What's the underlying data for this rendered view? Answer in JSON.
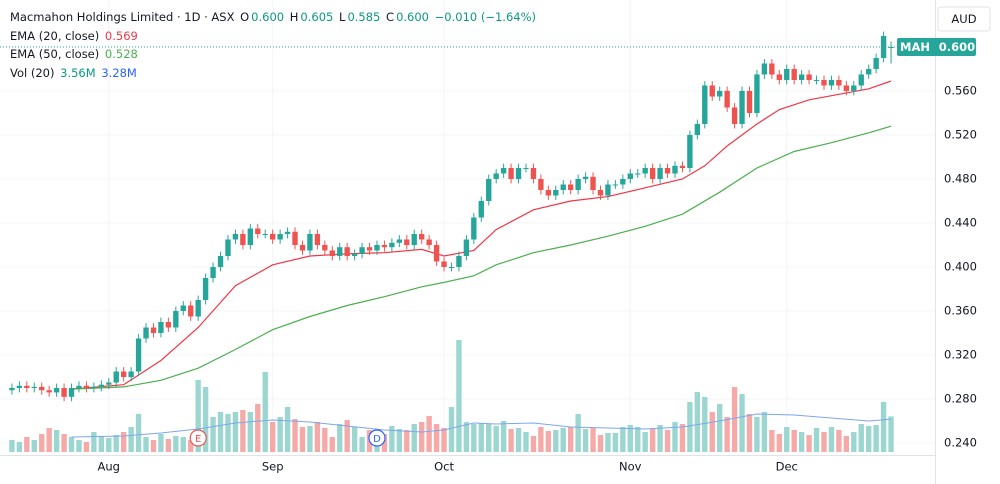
{
  "header": {
    "symbol": "Macmahon Holdings Limited · 1D · ASX",
    "ohlc_labels": [
      "O",
      "H",
      "L",
      "C"
    ],
    "ohlc_values": [
      "0.600",
      "0.605",
      "0.585",
      "0.600"
    ],
    "change": "−0.010 (−1.64%)",
    "currency": "AUD",
    "ticker": "MAH"
  },
  "chart_data": {
    "type": "candlestick",
    "color_up": "#26a69a",
    "color_down": "#ef5350",
    "open": [
      0.288,
      0.29,
      0.292,
      0.29,
      0.291,
      0.288,
      0.286,
      0.29,
      0.282,
      0.29,
      0.292,
      0.29,
      0.291,
      0.293,
      0.295,
      0.305,
      0.3,
      0.305,
      0.335,
      0.345,
      0.34,
      0.35,
      0.345,
      0.36,
      0.365,
      0.355,
      0.37,
      0.39,
      0.4,
      0.41,
      0.425,
      0.43,
      0.42,
      0.435,
      0.43,
      0.43,
      0.425,
      0.43,
      0.432,
      0.42,
      0.415,
      0.43,
      0.42,
      0.415,
      0.41,
      0.418,
      0.41,
      0.412,
      0.418,
      0.415,
      0.42,
      0.418,
      0.422,
      0.425,
      0.42,
      0.43,
      0.425,
      0.42,
      0.405,
      0.4,
      0.4,
      0.41,
      0.425,
      0.445,
      0.46,
      0.48,
      0.485,
      0.49,
      0.48,
      0.49,
      0.49,
      0.48,
      0.47,
      0.465,
      0.47,
      0.475,
      0.47,
      0.48,
      0.482,
      0.47,
      0.465,
      0.475,
      0.475,
      0.48,
      0.485,
      0.485,
      0.49,
      0.48,
      0.49,
      0.485,
      0.492,
      0.49,
      0.52,
      0.53,
      0.565,
      0.555,
      0.56,
      0.545,
      0.53,
      0.56,
      0.54,
      0.575,
      0.585,
      0.575,
      0.57,
      0.58,
      0.57,
      0.575,
      0.57,
      0.57,
      0.565,
      0.57,
      0.565,
      0.56,
      0.565,
      0.575,
      0.58,
      0.59,
      0.6
    ],
    "high": [
      0.294,
      0.296,
      0.296,
      0.295,
      0.295,
      0.292,
      0.294,
      0.294,
      0.294,
      0.296,
      0.296,
      0.295,
      0.297,
      0.299,
      0.309,
      0.309,
      0.309,
      0.339,
      0.349,
      0.349,
      0.354,
      0.354,
      0.364,
      0.369,
      0.369,
      0.374,
      0.394,
      0.404,
      0.414,
      0.429,
      0.434,
      0.434,
      0.439,
      0.439,
      0.434,
      0.434,
      0.434,
      0.436,
      0.436,
      0.424,
      0.434,
      0.434,
      0.424,
      0.419,
      0.422,
      0.422,
      0.416,
      0.422,
      0.422,
      0.424,
      0.424,
      0.426,
      0.429,
      0.429,
      0.434,
      0.434,
      0.429,
      0.424,
      0.409,
      0.404,
      0.414,
      0.429,
      0.449,
      0.464,
      0.484,
      0.489,
      0.494,
      0.494,
      0.494,
      0.494,
      0.494,
      0.484,
      0.474,
      0.474,
      0.479,
      0.479,
      0.484,
      0.486,
      0.486,
      0.474,
      0.479,
      0.479,
      0.484,
      0.489,
      0.489,
      0.494,
      0.494,
      0.494,
      0.494,
      0.496,
      0.496,
      0.524,
      0.534,
      0.569,
      0.569,
      0.564,
      0.564,
      0.549,
      0.564,
      0.564,
      0.579,
      0.589,
      0.589,
      0.579,
      0.584,
      0.584,
      0.579,
      0.579,
      0.574,
      0.574,
      0.574,
      0.574,
      0.569,
      0.569,
      0.579,
      0.584,
      0.594,
      0.614,
      0.605
    ],
    "low": [
      0.284,
      0.286,
      0.286,
      0.286,
      0.284,
      0.282,
      0.282,
      0.278,
      0.278,
      0.286,
      0.286,
      0.286,
      0.287,
      0.289,
      0.291,
      0.296,
      0.296,
      0.301,
      0.331,
      0.336,
      0.336,
      0.341,
      0.341,
      0.356,
      0.351,
      0.351,
      0.366,
      0.386,
      0.396,
      0.406,
      0.421,
      0.416,
      0.416,
      0.426,
      0.426,
      0.421,
      0.421,
      0.426,
      0.416,
      0.411,
      0.411,
      0.416,
      0.411,
      0.406,
      0.406,
      0.406,
      0.406,
      0.408,
      0.411,
      0.411,
      0.414,
      0.414,
      0.418,
      0.416,
      0.416,
      0.421,
      0.416,
      0.401,
      0.396,
      0.396,
      0.396,
      0.406,
      0.421,
      0.441,
      0.456,
      0.476,
      0.481,
      0.476,
      0.476,
      0.486,
      0.476,
      0.466,
      0.461,
      0.461,
      0.466,
      0.466,
      0.466,
      0.476,
      0.466,
      0.461,
      0.461,
      0.471,
      0.471,
      0.476,
      0.481,
      0.481,
      0.476,
      0.476,
      0.481,
      0.481,
      0.486,
      0.486,
      0.516,
      0.526,
      0.551,
      0.551,
      0.541,
      0.526,
      0.526,
      0.536,
      0.536,
      0.571,
      0.571,
      0.566,
      0.566,
      0.566,
      0.566,
      0.566,
      0.566,
      0.561,
      0.561,
      0.561,
      0.556,
      0.556,
      0.561,
      0.571,
      0.576,
      0.586,
      0.585
    ],
    "close": [
      0.29,
      0.292,
      0.29,
      0.291,
      0.288,
      0.286,
      0.29,
      0.282,
      0.29,
      0.292,
      0.29,
      0.291,
      0.293,
      0.295,
      0.305,
      0.3,
      0.305,
      0.335,
      0.345,
      0.34,
      0.35,
      0.345,
      0.36,
      0.365,
      0.355,
      0.37,
      0.39,
      0.4,
      0.41,
      0.425,
      0.43,
      0.42,
      0.435,
      0.43,
      0.43,
      0.425,
      0.43,
      0.432,
      0.42,
      0.415,
      0.43,
      0.42,
      0.415,
      0.41,
      0.418,
      0.41,
      0.412,
      0.418,
      0.415,
      0.42,
      0.418,
      0.422,
      0.425,
      0.42,
      0.43,
      0.425,
      0.42,
      0.405,
      0.4,
      0.4,
      0.41,
      0.425,
      0.445,
      0.46,
      0.48,
      0.485,
      0.49,
      0.48,
      0.49,
      0.49,
      0.48,
      0.47,
      0.465,
      0.47,
      0.475,
      0.47,
      0.48,
      0.482,
      0.47,
      0.465,
      0.475,
      0.475,
      0.48,
      0.485,
      0.485,
      0.49,
      0.48,
      0.49,
      0.485,
      0.492,
      0.49,
      0.52,
      0.53,
      0.565,
      0.555,
      0.56,
      0.545,
      0.53,
      0.56,
      0.54,
      0.575,
      0.585,
      0.575,
      0.57,
      0.58,
      0.57,
      0.575,
      0.57,
      0.57,
      0.565,
      0.57,
      0.565,
      0.56,
      0.565,
      0.575,
      0.58,
      0.59,
      0.61,
      0.6
    ],
    "volume": {
      "name": "Vol (20)",
      "value_label": "3.56M",
      "color_up": "#9cd6d1",
      "color_down": "#f6aaa8",
      "values": [
        1.2,
        1.0,
        1.5,
        1.2,
        1.8,
        2.4,
        2.2,
        1.8,
        1.5,
        1.2,
        1.0,
        2.0,
        1.6,
        1.4,
        1.7,
        2.0,
        2.5,
        3.8,
        1.5,
        1.2,
        1.8,
        1.3,
        1.6,
        1.5,
        1.2,
        7.2,
        6.5,
        3.5,
        4.0,
        3.8,
        4.0,
        4.2,
        4.0,
        4.8,
        8.0,
        3.0,
        3.5,
        4.5,
        3.3,
        2.5,
        2.6,
        3.0,
        2.4,
        1.5,
        2.8,
        3.2,
        2.5,
        1.5,
        2.2,
        1.4,
        1.8,
        2.6,
        2.3,
        2.2,
        2.8,
        3.0,
        3.6,
        2.8,
        2.4,
        4.5,
        11.2,
        3.0,
        2.8,
        2.9,
        2.8,
        2.6,
        3.1,
        2.3,
        2.4,
        2.0,
        1.6,
        2.5,
        2.1,
        2.2,
        2.4,
        2.5,
        3.8,
        2.3,
        2.4,
        1.7,
        1.9,
        1.9,
        2.5,
        2.7,
        2.5,
        2.0,
        2.3,
        2.7,
        2.2,
        3.0,
        2.8,
        5.0,
        6.0,
        5.5,
        4.0,
        4.8,
        3.5,
        6.5,
        5.8,
        3.8,
        3.5,
        4.0,
        2.2,
        1.8,
        2.5,
        2.2,
        2.0,
        1.7,
        2.4,
        2.0,
        2.5,
        2.2,
        1.6,
        2.0,
        2.8,
        2.6,
        2.7,
        5.0,
        3.56
      ],
      "ylim": [
        0,
        45
      ],
      "ma": {
        "color": "#7ea6f0",
        "value_label": "3.28M",
        "x": [
          8,
          15,
          20,
          25,
          30,
          35,
          40,
          45,
          50,
          55,
          58,
          62,
          65,
          70,
          75,
          80,
          85,
          90,
          95,
          100,
          105,
          110,
          115,
          118
        ],
        "values": [
          1.5,
          1.6,
          1.9,
          2.3,
          2.9,
          3.2,
          3.0,
          2.6,
          2.2,
          2.0,
          2.2,
          2.9,
          2.8,
          2.9,
          2.5,
          2.4,
          2.3,
          2.5,
          3.1,
          3.8,
          3.7,
          3.4,
          3.1,
          3.28
        ]
      }
    },
    "series": [
      {
        "name": "EMA (20, close)",
        "color": "#f23645",
        "value_label": "0.569",
        "x": [
          8,
          15,
          20,
          25,
          30,
          35,
          40,
          45,
          50,
          55,
          58,
          62,
          65,
          70,
          75,
          80,
          85,
          90,
          93,
          96,
          100,
          103,
          107,
          111,
          115,
          118
        ],
        "values": [
          0.289,
          0.293,
          0.315,
          0.345,
          0.383,
          0.402,
          0.41,
          0.412,
          0.413,
          0.416,
          0.41,
          0.415,
          0.434,
          0.452,
          0.46,
          0.464,
          0.472,
          0.48,
          0.492,
          0.51,
          0.53,
          0.543,
          0.552,
          0.557,
          0.562,
          0.569
        ]
      },
      {
        "name": "EMA (50, close)",
        "color": "#4caf50",
        "value_label": "0.528",
        "x": [
          8,
          15,
          20,
          25,
          30,
          35,
          40,
          45,
          50,
          55,
          58,
          62,
          65,
          70,
          75,
          80,
          85,
          90,
          95,
          100,
          105,
          110,
          115,
          118
        ],
        "values": [
          0.289,
          0.291,
          0.297,
          0.308,
          0.325,
          0.343,
          0.355,
          0.365,
          0.373,
          0.382,
          0.386,
          0.392,
          0.402,
          0.413,
          0.42,
          0.428,
          0.437,
          0.448,
          0.468,
          0.49,
          0.505,
          0.513,
          0.522,
          0.528
        ]
      }
    ],
    "last_price": {
      "value": 0.6,
      "label": "0.600"
    },
    "events": [
      {
        "x": 25,
        "label": "E",
        "color": "#ef5350"
      },
      {
        "x": 49,
        "label": "D",
        "color": "#2962ff"
      }
    ],
    "xlim": [
      -1.6,
      123.9
    ],
    "ylim": [
      0.2291,
      0.6427
    ],
    "xticks": [
      {
        "value": 13,
        "label": "Aug"
      },
      {
        "value": 35,
        "label": "Sep"
      },
      {
        "value": 58,
        "label": "Oct"
      },
      {
        "value": 83,
        "label": "Nov"
      },
      {
        "value": 104,
        "label": "Dec"
      }
    ],
    "yticks": [
      {
        "value": 0.24,
        "label": "0.240"
      },
      {
        "value": 0.28,
        "label": "0.280"
      },
      {
        "value": 0.32,
        "label": "0.320"
      },
      {
        "value": 0.36,
        "label": "0.360"
      },
      {
        "value": 0.4,
        "label": "0.400"
      },
      {
        "value": 0.44,
        "label": "0.440"
      },
      {
        "value": 0.48,
        "label": "0.480"
      },
      {
        "value": 0.52,
        "label": "0.520"
      },
      {
        "value": 0.56,
        "label": "0.560"
      }
    ],
    "grid": true
  }
}
